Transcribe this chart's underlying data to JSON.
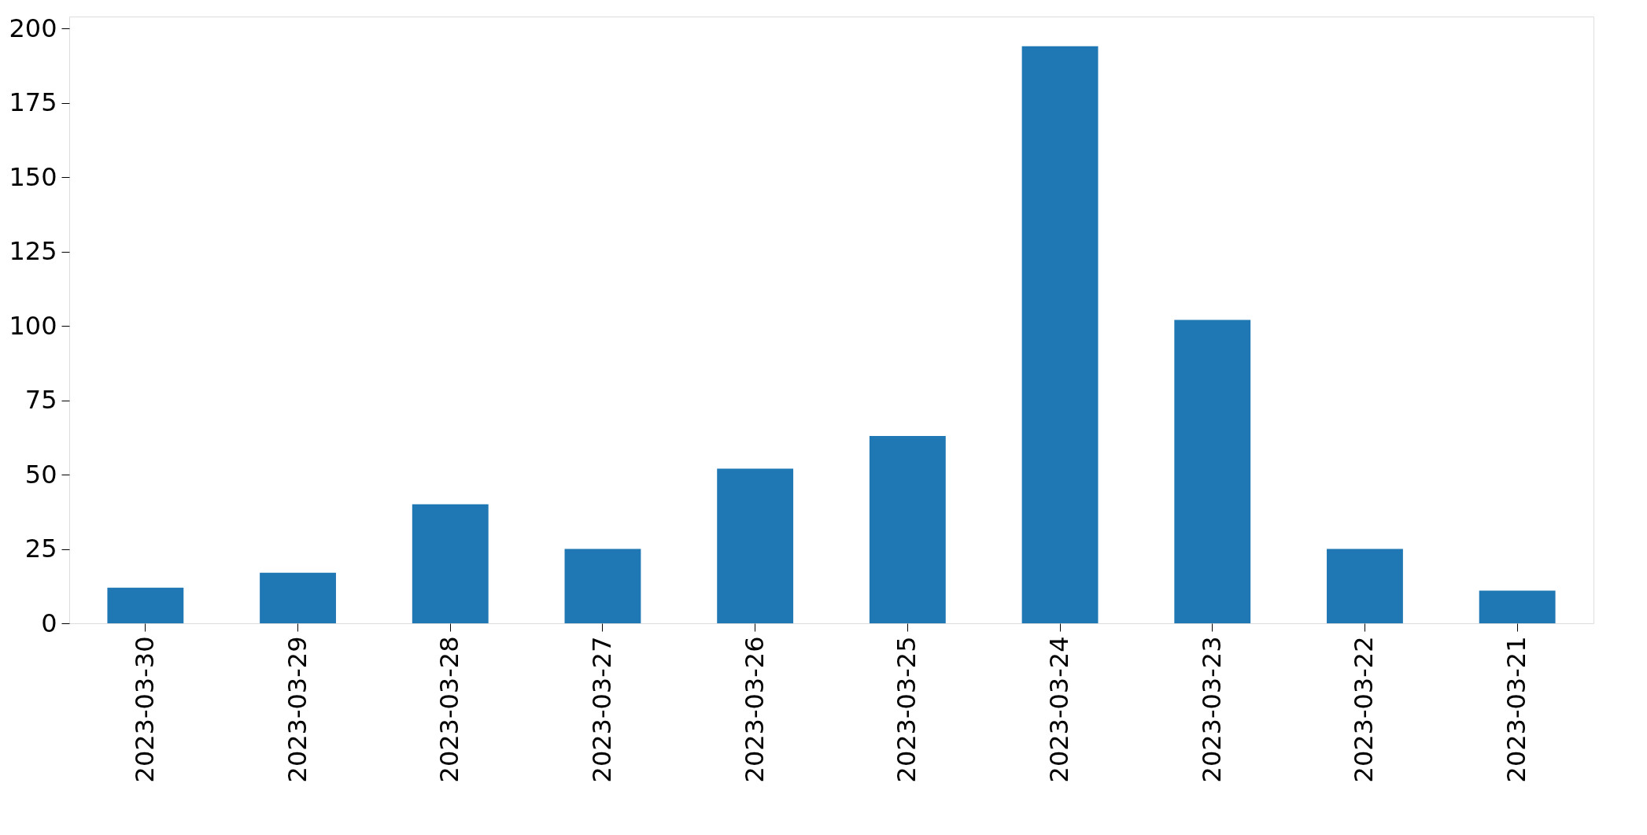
{
  "chart_data": {
    "type": "bar",
    "categories": [
      "2023-03-30",
      "2023-03-29",
      "2023-03-28",
      "2023-03-27",
      "2023-03-26",
      "2023-03-25",
      "2023-03-24",
      "2023-03-23",
      "2023-03-22",
      "2023-03-21"
    ],
    "values": [
      12,
      17,
      40,
      25,
      52,
      63,
      194,
      102,
      25,
      11
    ],
    "color": "#1f77b4",
    "ylim": [
      0,
      204
    ],
    "yticks": [
      0,
      25,
      50,
      75,
      100,
      125,
      150,
      175,
      200
    ],
    "grid": false
  }
}
